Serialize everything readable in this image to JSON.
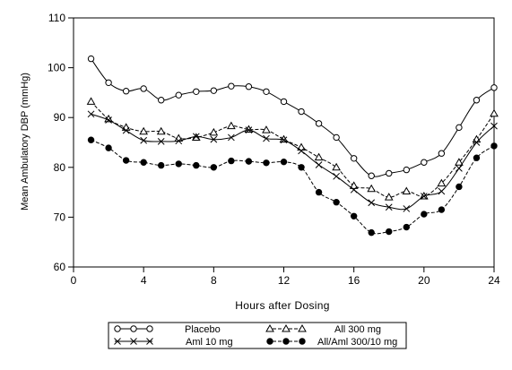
{
  "chart_data": {
    "type": "line",
    "title": "",
    "xlabel": "Hours after Dosing",
    "ylabel": "Mean Ambulatory DBP (mmHg)",
    "xlim": [
      0,
      24
    ],
    "ylim": [
      60,
      110
    ],
    "xticks": [
      "0",
      "4",
      "8",
      "12",
      "16",
      "20",
      "24"
    ],
    "yticks": [
      "60",
      "70",
      "80",
      "90",
      "100",
      "110"
    ],
    "grid": false,
    "legend_position": "bottom",
    "x": [
      1,
      2,
      3,
      4,
      5,
      6,
      7,
      8,
      9,
      10,
      11,
      12,
      13,
      14,
      15,
      16,
      17,
      18,
      19,
      20,
      21,
      22,
      23,
      24
    ],
    "series": [
      {
        "name": "Placebo",
        "marker": "circle",
        "line": "solid",
        "values": [
          101.8,
          97.0,
          95.3,
          95.8,
          93.5,
          94.5,
          95.2,
          95.4,
          96.3,
          96.2,
          95.2,
          93.2,
          91.2,
          88.8,
          86.0,
          81.8,
          78.3,
          78.8,
          79.5,
          81.0,
          82.8,
          88.0,
          93.5,
          96.0
        ]
      },
      {
        "name": "All 300 mg",
        "marker": "triangle",
        "line": "dashed",
        "values": [
          93.2,
          89.7,
          88.0,
          87.2,
          87.2,
          85.8,
          86.0,
          87.0,
          88.3,
          87.6,
          87.5,
          85.6,
          84.0,
          82.0,
          80.0,
          76.3,
          75.7,
          74.0,
          75.2,
          74.2,
          76.8,
          81.0,
          85.6,
          90.8
        ]
      },
      {
        "name": "Aml 10 mg",
        "marker": "cross",
        "line": "solid",
        "values": [
          90.7,
          89.5,
          87.4,
          85.4,
          85.2,
          85.3,
          86.2,
          85.6,
          86.0,
          87.5,
          85.8,
          85.5,
          83.3,
          80.5,
          78.2,
          75.5,
          72.9,
          72.0,
          71.7,
          74.2,
          75.2,
          79.8,
          85.0,
          88.3
        ]
      },
      {
        "name": "All/Aml 300/10 mg",
        "marker": "filled-circle",
        "line": "dashed",
        "values": [
          85.5,
          83.9,
          81.4,
          81.0,
          80.4,
          80.7,
          80.4,
          80.0,
          81.3,
          81.2,
          80.9,
          81.1,
          80.0,
          75.0,
          73.0,
          70.2,
          66.9,
          67.1,
          68.0,
          70.6,
          71.5,
          76.1,
          81.9,
          84.3
        ]
      }
    ]
  }
}
